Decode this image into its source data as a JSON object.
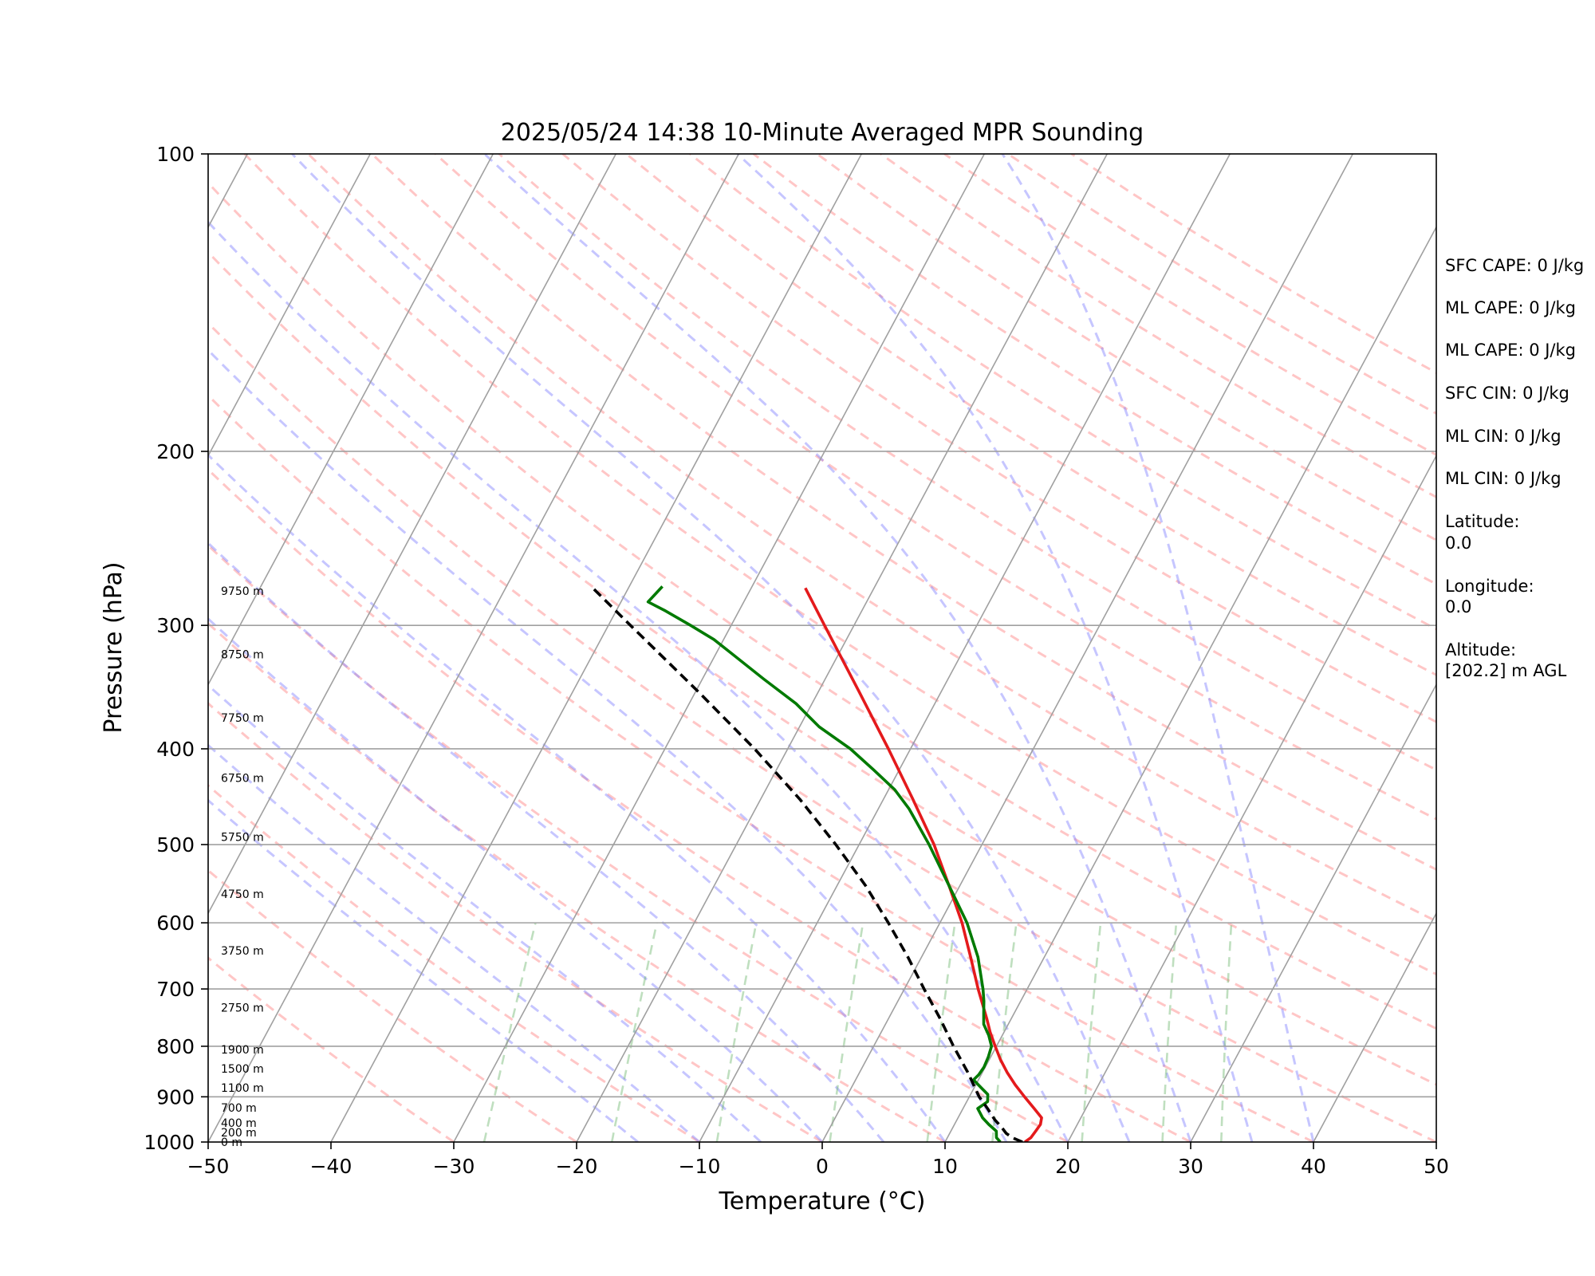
{
  "chart_data": {
    "type": "line",
    "title": "2025/05/24 14:38 10-Minute Averaged MPR Sounding",
    "xlabel": "Temperature (°C)",
    "ylabel": "Pressure (hPa)",
    "xlim": [
      -50,
      50
    ],
    "ylim": [
      1000,
      100
    ],
    "yscale": "log",
    "grid": true,
    "x_ticks": [
      -50,
      -40,
      -30,
      -20,
      -10,
      0,
      10,
      20,
      30,
      40,
      50
    ],
    "x_tick_labels": [
      "−50",
      "−40",
      "−30",
      "−20",
      "−10",
      "0",
      "10",
      "20",
      "30",
      "40",
      "50"
    ],
    "y_ticks": [
      1000,
      900,
      800,
      700,
      600,
      500,
      400,
      300,
      200,
      100
    ],
    "y_tick_labels": [
      "1000",
      "900",
      "800",
      "700",
      "600",
      "500",
      "400",
      "300",
      "200",
      "100"
    ],
    "skew_per_decade": 43.2,
    "height_labels": [
      {
        "text": "0 m",
        "p": 1000
      },
      {
        "text": "200 m",
        "p": 978
      },
      {
        "text": "400 m",
        "p": 956
      },
      {
        "text": "700 m",
        "p": 923
      },
      {
        "text": "1100 m",
        "p": 881
      },
      {
        "text": "1500 m",
        "p": 843
      },
      {
        "text": "1900 m",
        "p": 806
      },
      {
        "text": "2750 m",
        "p": 731
      },
      {
        "text": "3750 m",
        "p": 640
      },
      {
        "text": "4750 m",
        "p": 561
      },
      {
        "text": "5750 m",
        "p": 491
      },
      {
        "text": "6750 m",
        "p": 428
      },
      {
        "text": "7750 m",
        "p": 372
      },
      {
        "text": "8750 m",
        "p": 321
      },
      {
        "text": "9750 m",
        "p": 277
      }
    ],
    "series": [
      {
        "kind": "temperature",
        "color": "#e41a1c",
        "points": [
          {
            "p": 1000,
            "t": 16.5
          },
          {
            "p": 990,
            "t": 16.8
          },
          {
            "p": 975,
            "t": 16.9
          },
          {
            "p": 960,
            "t": 17.0
          },
          {
            "p": 945,
            "t": 16.8
          },
          {
            "p": 925,
            "t": 15.8
          },
          {
            "p": 900,
            "t": 14.5
          },
          {
            "p": 875,
            "t": 13.2
          },
          {
            "p": 850,
            "t": 12.0
          },
          {
            "p": 825,
            "t": 10.9
          },
          {
            "p": 800,
            "t": 9.9
          },
          {
            "p": 775,
            "t": 8.9
          },
          {
            "p": 750,
            "t": 8.0
          },
          {
            "p": 700,
            "t": 6.0
          },
          {
            "p": 650,
            "t": 4.0
          },
          {
            "p": 600,
            "t": 1.8
          },
          {
            "p": 550,
            "t": -0.9
          },
          {
            "p": 500,
            "t": -3.9
          },
          {
            "p": 450,
            "t": -7.6
          },
          {
            "p": 400,
            "t": -11.8
          },
          {
            "p": 350,
            "t": -16.7
          },
          {
            "p": 300,
            "t": -22.4
          },
          {
            "p": 275,
            "t": -25.6
          }
        ]
      },
      {
        "kind": "dewpoint",
        "color": "#007a00",
        "points": [
          {
            "p": 1000,
            "t": 14.5
          },
          {
            "p": 990,
            "t": 14.0
          },
          {
            "p": 975,
            "t": 13.7
          },
          {
            "p": 960,
            "t": 12.8
          },
          {
            "p": 945,
            "t": 12.0
          },
          {
            "p": 925,
            "t": 11.2
          },
          {
            "p": 910,
            "t": 11.7
          },
          {
            "p": 895,
            "t": 11.4
          },
          {
            "p": 880,
            "t": 10.5
          },
          {
            "p": 865,
            "t": 9.6
          },
          {
            "p": 855,
            "t": 9.8
          },
          {
            "p": 840,
            "t": 9.9
          },
          {
            "p": 820,
            "t": 9.8
          },
          {
            "p": 800,
            "t": 9.6
          },
          {
            "p": 780,
            "t": 8.9
          },
          {
            "p": 760,
            "t": 8.0
          },
          {
            "p": 740,
            "t": 7.5
          },
          {
            "p": 720,
            "t": 7.0
          },
          {
            "p": 700,
            "t": 6.4
          },
          {
            "p": 650,
            "t": 4.6
          },
          {
            "p": 600,
            "t": 2.2
          },
          {
            "p": 550,
            "t": -0.9
          },
          {
            "p": 500,
            "t": -4.3
          },
          {
            "p": 460,
            "t": -7.5
          },
          {
            "p": 440,
            "t": -9.5
          },
          {
            "p": 420,
            "t": -12.1
          },
          {
            "p": 400,
            "t": -14.9
          },
          {
            "p": 380,
            "t": -18.4
          },
          {
            "p": 360,
            "t": -21.3
          },
          {
            "p": 340,
            "t": -25.0
          },
          {
            "p": 320,
            "t": -28.8
          },
          {
            "p": 310,
            "t": -30.8
          },
          {
            "p": 300,
            "t": -33.3
          },
          {
            "p": 290,
            "t": -36.0
          },
          {
            "p": 284,
            "t": -37.8
          },
          {
            "p": 280,
            "t": -37.6
          },
          {
            "p": 274,
            "t": -37.3
          }
        ]
      },
      {
        "kind": "parcel",
        "color": "#000000",
        "dashed": true,
        "points": [
          {
            "p": 1000,
            "t": 16.3
          },
          {
            "p": 990,
            "t": 15.3
          },
          {
            "p": 980,
            "t": 14.6
          },
          {
            "p": 965,
            "t": 13.9
          },
          {
            "p": 950,
            "t": 13.1
          },
          {
            "p": 925,
            "t": 12.0
          },
          {
            "p": 900,
            "t": 10.8
          },
          {
            "p": 850,
            "t": 8.8
          },
          {
            "p": 800,
            "t": 6.5
          },
          {
            "p": 750,
            "t": 4.2
          },
          {
            "p": 700,
            "t": 1.6
          },
          {
            "p": 650,
            "t": -1.1
          },
          {
            "p": 600,
            "t": -4.2
          },
          {
            "p": 550,
            "t": -7.7
          },
          {
            "p": 500,
            "t": -11.9
          },
          {
            "p": 450,
            "t": -16.8
          },
          {
            "p": 400,
            "t": -22.7
          },
          {
            "p": 350,
            "t": -29.8
          },
          {
            "p": 300,
            "t": -38.2
          },
          {
            "p": 275,
            "t": -42.9
          }
        ]
      }
    ],
    "reference_lines": {
      "dry_adiabat_colors": "#ff8080",
      "moist_adiabat_colors": "#8080ff",
      "mixing_ratio_colors": "#60b060",
      "isotherm_color": "#a0a0a0"
    },
    "info": {
      "items": [
        "SFC CAPE: 0 J/kg",
        "ML CAPE: 0 J/kg",
        "ML CAPE: 0 J/kg",
        "SFC CIN: 0 J/kg",
        "ML CIN: 0 J/kg",
        "ML CIN: 0 J/kg"
      ],
      "latitude_label": "Latitude:",
      "latitude_value": "0.0",
      "longitude_label": "Longitude:",
      "longitude_value": "0.0",
      "altitude_label": "Altitude:",
      "altitude_value": "[202.2] m AGL"
    }
  }
}
